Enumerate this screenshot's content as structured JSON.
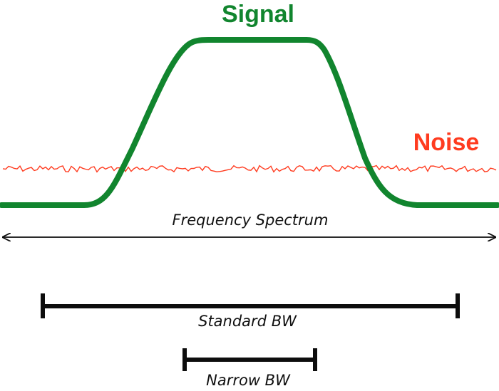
{
  "labels": {
    "signal": "Signal",
    "noise": "Noise",
    "frequency_spectrum": "Frequency Spectrum",
    "standard_bw": "Standard BW",
    "narrow_bw": "Narrow BW"
  },
  "colors": {
    "signal": "#11852e",
    "noise": "#ff3b1f",
    "bars": "#0d0d0d",
    "axis": "#0d0d0d"
  }
}
